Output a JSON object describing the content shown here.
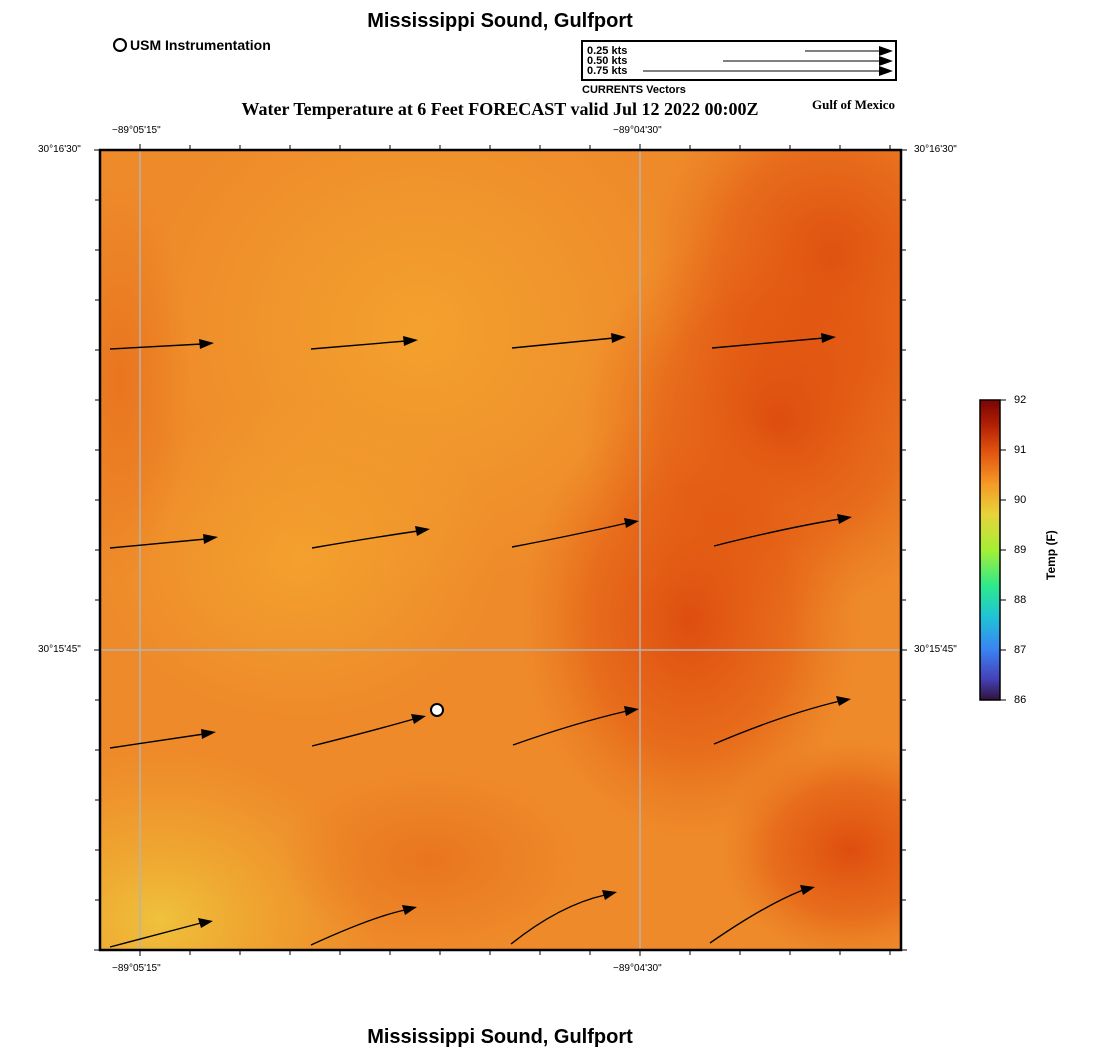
{
  "titles": {
    "top": "Mississippi Sound, Gulfport",
    "bottom": "Mississippi Sound, Gulfport",
    "map": "Water Temperature at 6 Feet FORECAST valid Jul 12 2022 00:00Z",
    "region": "Gulf of Mexico"
  },
  "legend": {
    "usm": "USM Instrumentation"
  },
  "vector_key": {
    "speeds": [
      "0.25 kts",
      "0.50 kts",
      "0.75 kts"
    ],
    "caption": "CURRENTS Vectors"
  },
  "axes": {
    "lon_ticks": [
      "−89°05'15\"",
      "−89°04'30\""
    ],
    "lat_ticks": [
      "30°16'30\"",
      "30°15'45\""
    ]
  },
  "colorbar": {
    "title": "Temp (F)",
    "labels": [
      "92",
      "91",
      "90",
      "89",
      "88",
      "87",
      "86"
    ],
    "min": 86,
    "max": 92
  },
  "colors": {
    "field_base": "#ee8a2a",
    "field_warm": "#e24e10",
    "field_cool": "#eec03a",
    "grid": "#b4b4b4"
  },
  "chart_data": {
    "type": "map",
    "variable": "Water Temperature at 6 Feet",
    "units": "F",
    "valid": "Jul 12 2022 00:00Z",
    "value_range": [
      86,
      92
    ],
    "current_vectors_rows": 4,
    "current_vectors_cols": 4,
    "current_direction": "generally east-northeast"
  }
}
